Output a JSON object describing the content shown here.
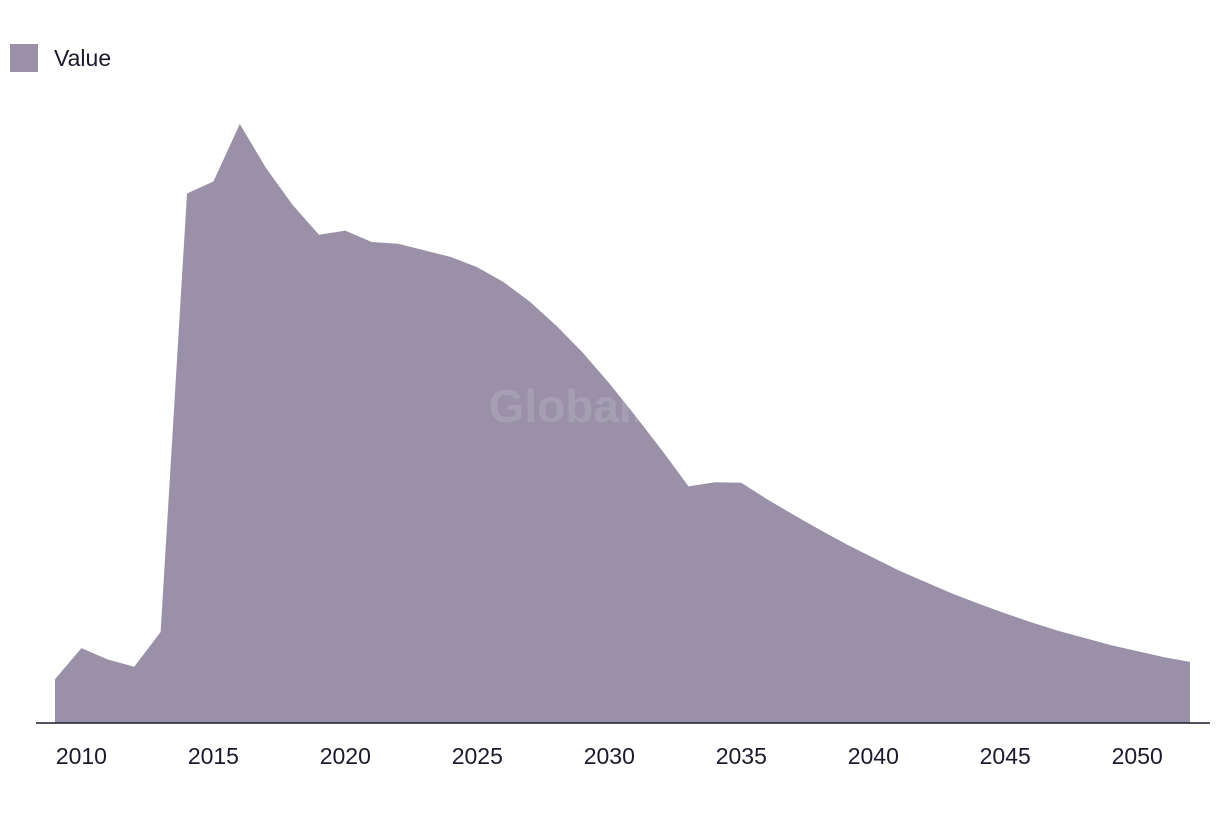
{
  "chart_data": {
    "type": "area",
    "legend": {
      "entries": [
        "Value"
      ],
      "placement": "top-left"
    },
    "series": [
      {
        "name": "Value",
        "color": "#9a91a9",
        "x": [
          2009,
          2010,
          2011,
          2012,
          2013,
          2014,
          2015,
          2016,
          2017,
          2018,
          2019,
          2020,
          2021,
          2022,
          2023,
          2024,
          2025,
          2026,
          2027,
          2028,
          2029,
          2030,
          2031,
          2032,
          2033,
          2034,
          2035,
          2036,
          2037,
          2038,
          2039,
          2040,
          2041,
          2042,
          2043,
          2044,
          2045,
          2046,
          2047,
          2048,
          2049,
          2050,
          2051,
          2052
        ],
        "values": [
          7.3,
          12.5,
          10.6,
          9.4,
          15.2,
          88.4,
          90.4,
          100.0,
          92.6,
          86.5,
          81.5,
          82.2,
          80.3,
          80.0,
          78.9,
          77.8,
          76.1,
          73.6,
          70.3,
          66.3,
          61.8,
          56.7,
          51.2,
          45.5,
          39.5,
          40.2,
          40.1,
          37.3,
          34.7,
          32.2,
          29.8,
          27.6,
          25.4,
          23.5,
          21.6,
          19.9,
          18.3,
          16.8,
          15.4,
          14.2,
          13.0,
          12.0,
          11.0,
          10.2
        ]
      }
    ],
    "x_ticks": [
      "2010",
      "2015",
      "2020",
      "2025",
      "2030",
      "2035",
      "2040",
      "2045",
      "2050"
    ],
    "xlim": [
      2009,
      2052
    ],
    "ylim": [
      0,
      100
    ],
    "grid": false,
    "watermark": "GlobalData"
  }
}
